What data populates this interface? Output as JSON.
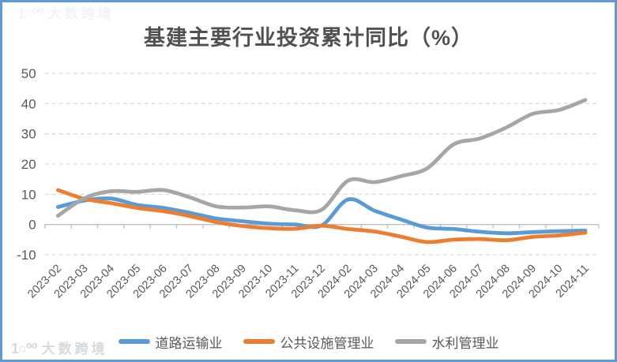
{
  "title": "基建主要行业投资累计同比（%）",
  "watermarks": {
    "logo_text": "1○⁰⁰",
    "top_left": "大数跨境",
    "bottom_left": "大数跨境"
  },
  "colors": {
    "border": "#5C9BD5",
    "grid": "#D9D9D9",
    "axis": "#BFBFBF",
    "label_text": "#595959",
    "title_text": "#515151",
    "watermark": "#D5D9DC",
    "watermark_faint": "#EFF4F7"
  },
  "chart_data": {
    "type": "line",
    "title": "基建主要行业投资累计同比（%）",
    "smooth": true,
    "grid": "horizontal-dashed",
    "legend_position": "bottom",
    "ylim": [
      -10,
      50
    ],
    "yticks": [
      50,
      40,
      30,
      20,
      10,
      0,
      -10
    ],
    "categories": [
      "2023-02",
      "2023-03",
      "2023-04",
      "2023-05",
      "2023-06",
      "2023-07",
      "2023-08",
      "2023-09",
      "2023-10",
      "2023-11",
      "2023-12",
      "2024-02",
      "2024-03",
      "2024-04",
      "2024-05",
      "2024-06",
      "2024-07",
      "2024-08",
      "2024-09",
      "2024-10",
      "2024-11"
    ],
    "series": [
      {
        "name": "道路运输业",
        "color": "#5B9BD5",
        "values": [
          5.8,
          7.9,
          8.6,
          6.5,
          5.5,
          3.9,
          2.0,
          1.1,
          0.3,
          0.0,
          -0.3,
          8.3,
          4.6,
          1.7,
          -1.0,
          -1.5,
          -2.4,
          -2.9,
          -2.5,
          -2.2,
          -2.0
        ]
      },
      {
        "name": "公共设施管理业",
        "color": "#ED7D31",
        "values": [
          11.4,
          8.5,
          7.1,
          5.5,
          4.4,
          2.8,
          0.8,
          -0.5,
          -1.2,
          -1.4,
          -0.4,
          -1.5,
          -2.3,
          -4.0,
          -5.8,
          -5.0,
          -4.8,
          -5.2,
          -4.1,
          -3.6,
          -2.7
        ]
      },
      {
        "name": "水利管理业",
        "color": "#A6A6A6",
        "values": [
          2.9,
          8.7,
          11.0,
          10.8,
          11.4,
          9.0,
          6.0,
          5.6,
          6.0,
          4.7,
          4.9,
          14.5,
          14.0,
          16.0,
          18.6,
          26.5,
          28.5,
          32.1,
          36.6,
          37.9,
          41.2
        ]
      }
    ]
  }
}
